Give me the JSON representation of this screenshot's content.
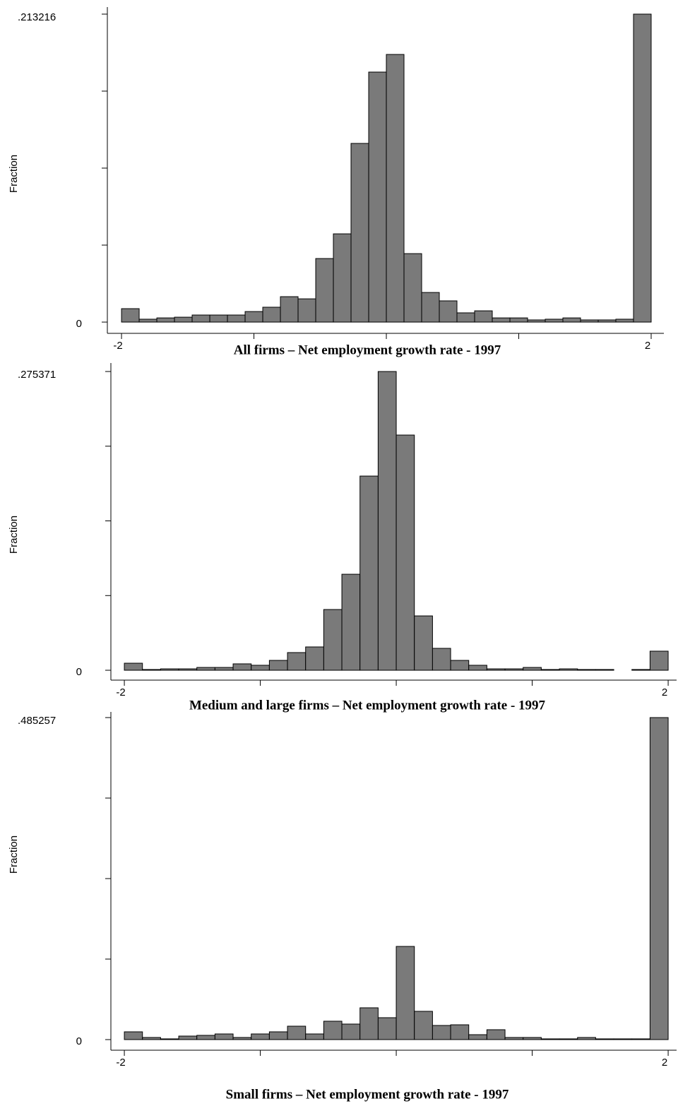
{
  "chart_data": [
    {
      "type": "histogram",
      "title": "All firms – Net employment growth rate - 1997",
      "y_label": "Fraction",
      "color": "#7a7a7a",
      "bins": [
        -2,
        -1.8667,
        -1.7333,
        -1.6,
        -1.4667,
        -1.3333,
        -1.2,
        -1.0667,
        -0.9333,
        -0.8,
        -0.6667,
        -0.5333,
        -0.4,
        -0.2667,
        -0.1333,
        0,
        0.1333,
        0.2667,
        0.4,
        0.5333,
        0.6667,
        0.8,
        0.9333,
        1.0667,
        1.2,
        1.3333,
        1.4667,
        1.6,
        1.7333,
        1.8667,
        2
      ],
      "values": [
        0.0093,
        0.002,
        0.0029,
        0.0034,
        0.0049,
        0.0049,
        0.0049,
        0.0073,
        0.0103,
        0.0176,
        0.0161,
        0.044,
        0.0611,
        0.1237,
        0.1731,
        0.1853,
        0.0474,
        0.0205,
        0.0147,
        0.0064,
        0.0078,
        0.0029,
        0.0029,
        0.0015,
        0.002,
        0.0029,
        0.0015,
        0.0015,
        0.002,
        0.213216
      ],
      "xlim": [
        -2.107,
        2.096
      ],
      "ylim": [
        -0.0078,
        0.2181
      ],
      "xticks": [
        -2,
        {
          "value": -1,
          "label": null
        },
        {
          "value": 0,
          "label": null
        },
        {
          "value": 1,
          "label": null
        },
        2
      ],
      "yticks": [
        0,
        {
          "value": 0.053304,
          "label": null
        },
        {
          "value": 0.106608,
          "label": null
        },
        {
          "value": 0.159912,
          "label": null
        },
        {
          "value": 0.213216,
          "label": ".213216"
        }
      ]
    },
    {
      "type": "histogram",
      "title": "Medium and large firms – Net employment growth rate - 1997",
      "y_label": "Fraction",
      "color": "#7a7a7a",
      "bins": [
        -2,
        -1.8667,
        -1.7333,
        -1.6,
        -1.4667,
        -1.3333,
        -1.2,
        -1.0667,
        -0.9333,
        -0.8,
        -0.6667,
        -0.5333,
        -0.4,
        -0.2667,
        -0.1333,
        0,
        0.1333,
        0.2667,
        0.4,
        0.5333,
        0.6667,
        0.8,
        0.9333,
        1.0667,
        1.2,
        1.3333,
        1.4667,
        1.6,
        1.7333,
        1.8667,
        2
      ],
      "values": [
        0.0065,
        0.0007,
        0.0013,
        0.0013,
        0.0026,
        0.0026,
        0.0059,
        0.0046,
        0.0091,
        0.0163,
        0.0215,
        0.056,
        0.0885,
        0.179,
        0.275371,
        0.2168,
        0.0501,
        0.0202,
        0.0091,
        0.0046,
        0.0013,
        0.0013,
        0.0026,
        0.0007,
        0.0013,
        0.0007,
        0.0007,
        0,
        0.0007,
        0.0176
      ],
      "xlim": [
        -2.099,
        2.062
      ],
      "ylim": [
        -0.0091,
        0.2832
      ],
      "xticks": [
        -2,
        {
          "value": -1,
          "label": null
        },
        {
          "value": 0,
          "label": null
        },
        {
          "value": 1,
          "label": null
        },
        2
      ],
      "yticks": [
        0,
        {
          "value": 0.068843,
          "label": null
        },
        {
          "value": 0.137686,
          "label": null
        },
        {
          "value": 0.206528,
          "label": null
        },
        {
          "value": 0.275371,
          "label": ".275371"
        }
      ]
    },
    {
      "type": "histogram",
      "title": "Small firms – Net employment growth rate - 1997",
      "y_label": "Fraction",
      "color": "#7a7a7a",
      "bins": [
        -2,
        -1.8667,
        -1.7333,
        -1.6,
        -1.4667,
        -1.3333,
        -1.2,
        -1.0667,
        -0.9333,
        -0.8,
        -0.6667,
        -0.5333,
        -0.4,
        -0.2667,
        -0.1333,
        0,
        0.1333,
        0.2667,
        0.4,
        0.5333,
        0.6667,
        0.8,
        0.9333,
        1.0667,
        1.2,
        1.3333,
        1.4667,
        1.6,
        1.7333,
        1.8667,
        2
      ],
      "values": [
        0.0117,
        0.0032,
        0.0011,
        0.0053,
        0.0064,
        0.0085,
        0.0032,
        0.0085,
        0.0117,
        0.0202,
        0.0085,
        0.0277,
        0.0234,
        0.0479,
        0.033,
        0.1404,
        0.0426,
        0.0213,
        0.0223,
        0.0074,
        0.0149,
        0.0032,
        0.0032,
        0.0011,
        0.0011,
        0.0032,
        0.0011,
        0.0011,
        0.0011,
        0.485257
      ],
      "xlim": [
        -2.099,
        2.062
      ],
      "ylim": [
        -0.016,
        0.4938
      ],
      "xticks": [
        -2,
        {
          "value": -1,
          "label": null
        },
        {
          "value": 0,
          "label": null
        },
        {
          "value": 1,
          "label": null
        },
        2
      ],
      "yticks": [
        0,
        {
          "value": 0.121314,
          "label": null
        },
        {
          "value": 0.242629,
          "label": null
        },
        {
          "value": 0.363943,
          "label": null
        },
        {
          "value": 0.485257,
          "label": ".485257"
        }
      ]
    }
  ]
}
